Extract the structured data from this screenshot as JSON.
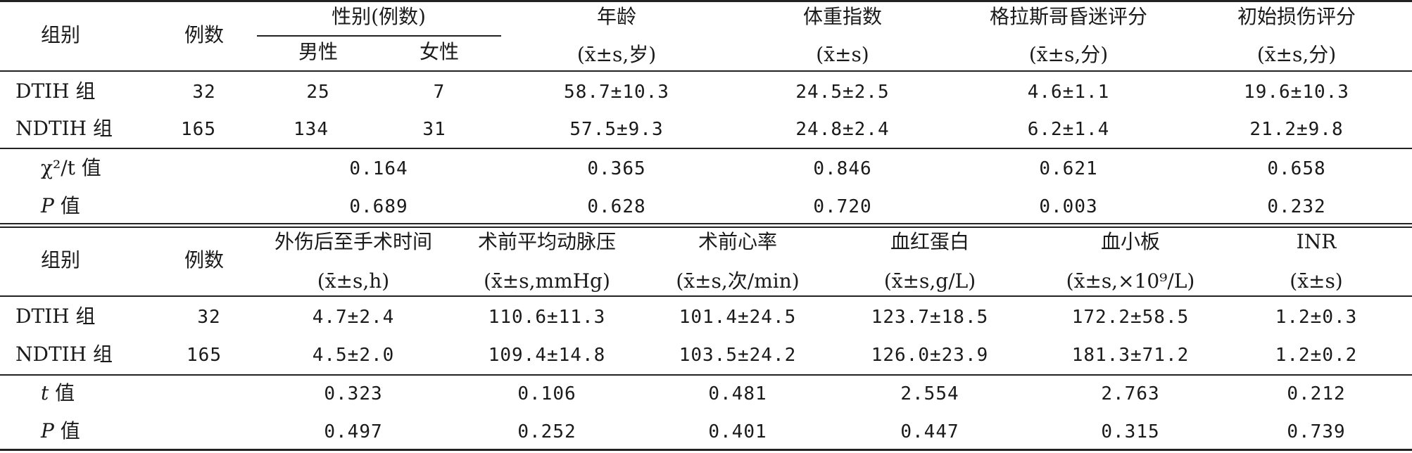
{
  "table1": {
    "header": {
      "group": "组别",
      "cases": "例数",
      "sex": "性别(例数)",
      "male": "男性",
      "female": "女性",
      "age": "年龄",
      "age_unit": "(x̄±s,岁)",
      "bmi": "体重指数",
      "bmi_unit": "(x̄±s)",
      "gcs": "格拉斯哥昏迷评分",
      "gcs_unit": "(x̄±s,分)",
      "iss": "初始损伤评分",
      "iss_unit": "(x̄±s,分)"
    },
    "rows": [
      {
        "group": "DTIH 组",
        "n": "32",
        "male": "25",
        "female": "7",
        "age": "58.7±10.3",
        "bmi": "24.5±2.5",
        "gcs": "4.6±1.1",
        "iss": "19.6±10.3"
      },
      {
        "group": "NDTIH 组",
        "n": "165",
        "male": "134",
        "female": "31",
        "age": "57.5±9.3",
        "bmi": "24.8±2.4",
        "gcs": "6.2±1.4",
        "iss": "21.2±9.8"
      }
    ],
    "stats": [
      {
        "label_sym": "χ²/t",
        "label_word": "值",
        "sex": "0.164",
        "age": "0.365",
        "bmi": "0.846",
        "gcs": "0.621",
        "iss": "0.658"
      },
      {
        "label_sym": "P",
        "label_word": "值",
        "sex": "0.689",
        "age": "0.628",
        "bmi": "0.720",
        "gcs": "0.003",
        "iss": "0.232"
      }
    ]
  },
  "table2": {
    "header": {
      "group": "组别",
      "cases": "例数",
      "time": "外伤后至手术时间",
      "time_unit": "(x̄±s,h)",
      "map": "术前平均动脉压",
      "map_unit": "(x̄±s,mmHg)",
      "hr": "术前心率",
      "hr_unit": "(x̄±s,次/min)",
      "hb": "血红蛋白",
      "hb_unit": "(x̄±s,g/L)",
      "plt": "血小板",
      "plt_unit": "(x̄±s,×10⁹/L)",
      "inr": "INR",
      "inr_unit": "(x̄±s)"
    },
    "rows": [
      {
        "group": "DTIH 组",
        "n": "32",
        "time": "4.7±2.4",
        "map": "110.6±11.3",
        "hr": "101.4±24.5",
        "hb": "123.7±18.5",
        "plt": "172.2±58.5",
        "inr": "1.2±0.3"
      },
      {
        "group": "NDTIH 组",
        "n": "165",
        "time": "4.5±2.0",
        "map": "109.4±14.8",
        "hr": "103.5±24.2",
        "hb": "126.0±23.9",
        "plt": "181.3±71.2",
        "inr": "1.2±0.2"
      }
    ],
    "stats": [
      {
        "label_sym": "t",
        "label_word": "值",
        "time": "0.323",
        "map": "0.106",
        "hr": "0.481",
        "hb": "2.554",
        "plt": "2.763",
        "inr": "0.212"
      },
      {
        "label_sym": "P",
        "label_word": "值",
        "time": "0.497",
        "map": "0.252",
        "hr": "0.401",
        "hb": "0.447",
        "plt": "0.315",
        "inr": "0.739"
      }
    ]
  }
}
